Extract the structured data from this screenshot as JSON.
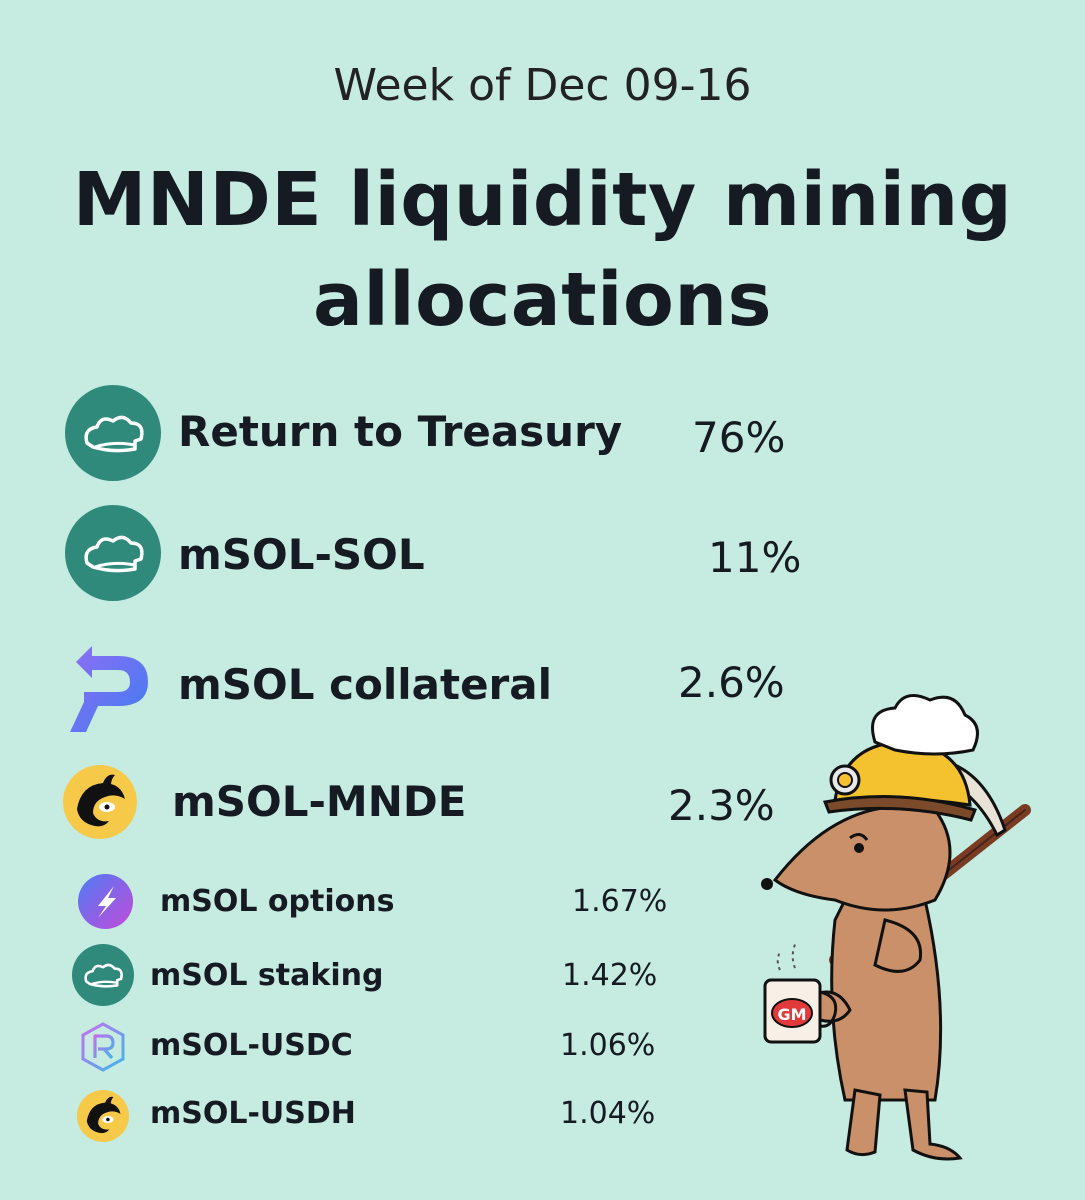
{
  "header": {
    "subtitle": "Week of Dec 09-16",
    "title_line1": "MNDE liquidity mining",
    "title_line2": "allocations"
  },
  "allocations": [
    {
      "label": "Return to Treasury",
      "percent": "76%",
      "icon": "marinade-chef-hat-icon",
      "color": "#2f8a7c"
    },
    {
      "label": "mSOL-SOL",
      "percent": "11%",
      "icon": "marinade-chef-hat-icon",
      "color": "#2f8a7c"
    },
    {
      "label": "mSOL collateral",
      "percent": "2.6%",
      "icon": "port-finance-p-icon",
      "color": "#5b6cf0"
    },
    {
      "label": "mSOL-MNDE",
      "percent": "2.3%",
      "icon": "orca-whale-icon",
      "color": "#f7c948"
    },
    {
      "label": "mSOL options",
      "percent": "1.67%",
      "icon": "lightning-bolt-icon",
      "color": "#7a5cf0"
    },
    {
      "label": "mSOL staking",
      "percent": "1.42%",
      "icon": "marinade-chef-hat-icon",
      "color": "#2f8a7c"
    },
    {
      "label": "mSOL-USDC",
      "percent": "1.06%",
      "icon": "raydium-r-icon",
      "color": "#6a5ce8"
    },
    {
      "label": "mSOL-USDH",
      "percent": "1.04%",
      "icon": "orca-whale-icon",
      "color": "#f7c948"
    }
  ],
  "mascot": {
    "icon": "miner-mole-mascot-icon",
    "mug_text": "GM"
  }
}
